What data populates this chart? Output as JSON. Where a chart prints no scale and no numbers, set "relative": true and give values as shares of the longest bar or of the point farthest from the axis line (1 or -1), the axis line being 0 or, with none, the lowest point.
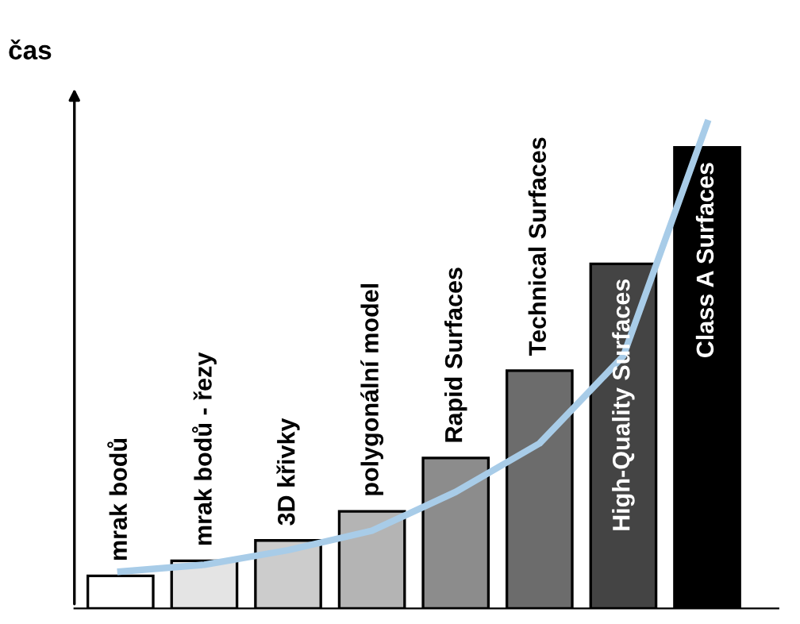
{
  "chart_data": {
    "type": "bar",
    "relative": true,
    "ylabel": "čas",
    "categories": [
      "mrak bodů",
      "mrak bodů - řezy",
      "3D křivky",
      "polygonální model",
      "Rapid Surfaces",
      "Technical Surfaces",
      "High-Quality Surfaces",
      "Class A Surfaces"
    ],
    "series": [
      {
        "colors": [
          "#ffffff",
          "#e4e4e4",
          "#cccccc",
          "#b4b4b4",
          "#8c8c8c",
          "#6c6c6c",
          "#444444",
          "#000000"
        ],
        "values": [
          0.067,
          0.098,
          0.14,
          0.2,
          0.31,
          0.49,
          0.71,
          0.95
        ]
      },
      {
        "type": "line",
        "color": "#a8cce8",
        "values": [
          0.076,
          0.09,
          0.12,
          0.16,
          0.24,
          0.34,
          0.52,
          1
        ]
      }
    ],
    "legend": false,
    "tick_labels": false
  }
}
